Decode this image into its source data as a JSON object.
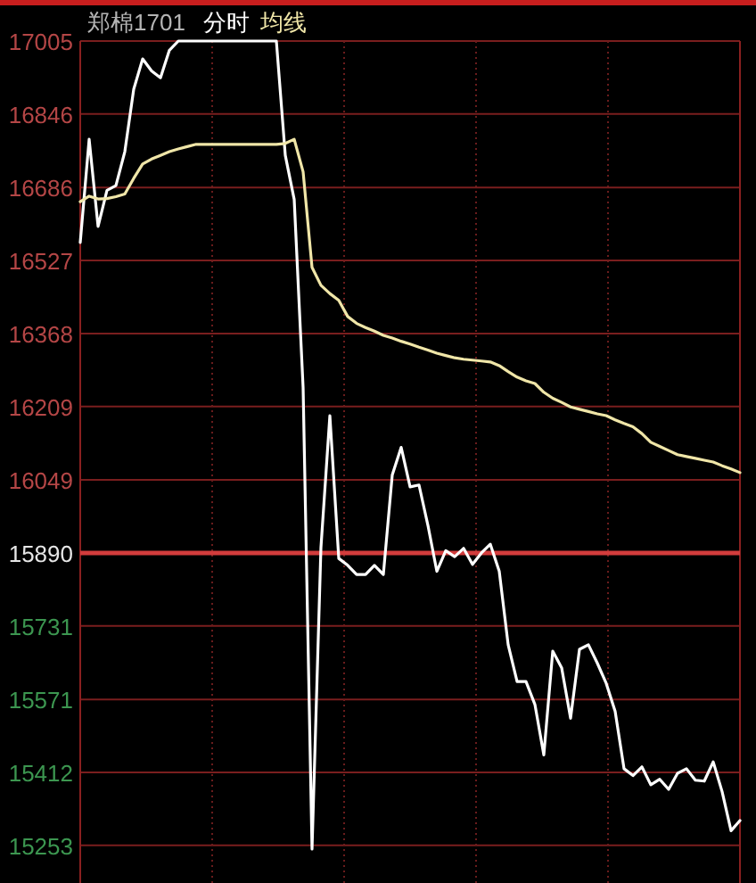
{
  "chart_data": {
    "type": "line",
    "title": "郑棉1701",
    "categories": [
      null,
      null,
      null,
      null,
      null,
      null,
      null,
      null,
      null,
      null,
      null,
      null,
      null,
      null,
      null,
      null,
      null,
      null,
      null,
      null,
      null,
      null,
      null,
      null,
      null,
      null,
      null,
      null,
      null,
      null,
      null,
      null,
      null,
      null,
      null,
      null,
      null,
      null,
      null,
      null,
      null,
      null,
      null,
      null,
      null,
      null,
      null,
      null,
      null,
      null,
      null,
      null,
      null,
      null,
      null,
      null,
      null,
      null,
      null,
      null,
      null,
      null,
      null,
      null,
      null,
      null,
      null,
      null,
      null,
      null,
      null,
      null,
      null,
      null,
      null
    ],
    "series": [
      {
        "name": "分时",
        "color": "#ffffff",
        "values": [
          16566,
          16791,
          16601,
          16680,
          16690,
          16764,
          16900,
          16966,
          16940,
          16925,
          16985,
          17005,
          17005,
          17005,
          17005,
          17005,
          17005,
          17005,
          17005,
          17005,
          17005,
          17005,
          17005,
          16756,
          16660,
          16250,
          15245,
          15902,
          16189,
          15878,
          15863,
          15843,
          15843,
          15863,
          15843,
          16060,
          16120,
          16034,
          16038,
          15950,
          15850,
          15895,
          15882,
          15900,
          15865,
          15890,
          15909,
          15850,
          15690,
          15610,
          15610,
          15560,
          15450,
          15676,
          15640,
          15530,
          15680,
          15690,
          15650,
          15606,
          15545,
          15420,
          15405,
          15424,
          15385,
          15397,
          15375,
          15410,
          15420,
          15395,
          15393,
          15435,
          15370,
          15285,
          15307
        ]
      },
      {
        "name": "均线",
        "color": "#f0e6a8",
        "values": [
          16655,
          16667,
          16661,
          16662,
          16666,
          16672,
          16706,
          16737,
          16748,
          16756,
          16764,
          16770,
          16775,
          16780,
          16780,
          16780,
          16780,
          16780,
          16780,
          16780,
          16780,
          16780,
          16780,
          16782,
          16791,
          16720,
          16512,
          16473,
          16455,
          16440,
          16405,
          16390,
          16381,
          16373,
          16364,
          16358,
          16351,
          16345,
          16338,
          16332,
          16325,
          16320,
          16315,
          16312,
          16310,
          16308,
          16306,
          16298,
          16285,
          16273,
          16265,
          16259,
          16240,
          16227,
          16218,
          16208,
          16203,
          16198,
          16193,
          16189,
          16180,
          16172,
          16165,
          16150,
          16131,
          16122,
          16113,
          16104,
          16100,
          16096,
          16092,
          16088,
          16080,
          16073,
          16065
        ]
      }
    ],
    "ylim": [
      15175,
      17005
    ],
    "yticks": [
      15253,
      15412,
      15571,
      15731,
      15890,
      16049,
      16209,
      16368,
      16527,
      16686,
      16846,
      17005
    ],
    "ref_lines": [
      {
        "axis": "y",
        "value": 15890,
        "color": "#d23c3c"
      }
    ],
    "grid": true
  }
}
